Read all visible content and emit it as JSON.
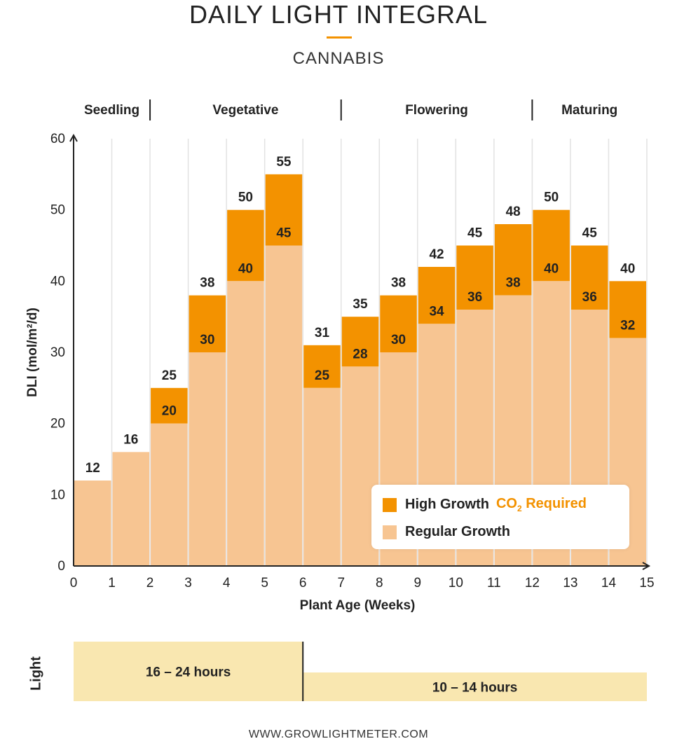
{
  "chart_data": {
    "type": "bar",
    "title": "DAILY LIGHT INTEGRAL",
    "subtitle": "CANNABIS",
    "xlabel": "Plant Age (Weeks)",
    "ylabel": "DLI (mol/m²/d)",
    "ylim": [
      0,
      60
    ],
    "xlim": [
      0,
      15
    ],
    "yticks": [
      0,
      10,
      20,
      30,
      40,
      50,
      60
    ],
    "xticks": [
      0,
      1,
      2,
      3,
      4,
      5,
      6,
      7,
      8,
      9,
      10,
      11,
      12,
      13,
      14,
      15
    ],
    "x_start": [
      0,
      1,
      2,
      3,
      4,
      5,
      6,
      7,
      8,
      9,
      10,
      11,
      12,
      13,
      14
    ],
    "x_end": [
      1,
      2,
      3,
      4,
      5,
      6,
      7,
      8,
      9,
      10,
      11,
      12,
      13,
      14,
      15
    ],
    "series": [
      {
        "name": "Regular Growth",
        "color": "#f7c592",
        "values": [
          12,
          16,
          20,
          30,
          40,
          45,
          25,
          28,
          30,
          34,
          36,
          38,
          40,
          36,
          32
        ]
      },
      {
        "name": "High Growth",
        "color": "#f39200",
        "values": [
          null,
          null,
          25,
          38,
          50,
          55,
          31,
          35,
          38,
          42,
          45,
          48,
          50,
          45,
          40
        ]
      }
    ],
    "phases": [
      {
        "label": "Seedling",
        "start": 0,
        "end": 2
      },
      {
        "label": "Vegetative",
        "start": 2,
        "end": 7
      },
      {
        "label": "Flowering",
        "start": 7,
        "end": 12
      },
      {
        "label": "Maturing",
        "start": 12,
        "end": 15
      }
    ],
    "legend": {
      "position": "bottom-right",
      "high_label": "High Growth",
      "co2_label_prefix": "CO",
      "co2_subscript": "2",
      "co2_label_suffix": " Required",
      "regular_label": "Regular Growth"
    },
    "light": {
      "title": "Light",
      "color": "#f9e7b0",
      "periods": [
        {
          "label": "16 – 24 hours",
          "start": 0,
          "end": 6
        },
        {
          "label": "10 – 14 hours",
          "start": 6,
          "end": 15
        }
      ]
    },
    "grid": "vertical"
  },
  "source": "WWW.GROWLIGHTMETER.COM",
  "colors": {
    "accent": "#f39200",
    "regular": "#f7c592",
    "light_band": "#f9e7b0"
  }
}
